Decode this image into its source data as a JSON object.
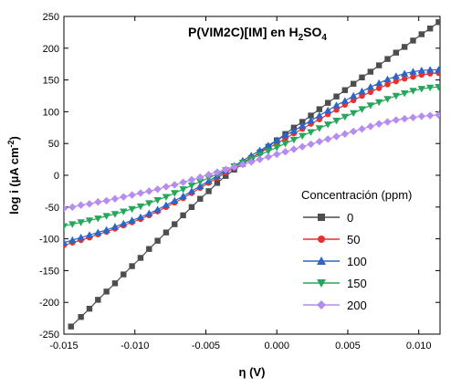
{
  "chart_data": {
    "type": "scatter",
    "title_parts": {
      "main": "P(VIM2C)[IM] en H",
      "sub1": "2",
      "mid": "SO",
      "sub2": "4"
    },
    "xlabel": "η (V)",
    "ylabel_parts": {
      "main": "log i (µA cm",
      "sup": "-2",
      "end": ")"
    },
    "xlim": [
      -0.015,
      0.0115
    ],
    "ylim": [
      -250,
      250
    ],
    "x_ticks": [
      -0.015,
      -0.01,
      -0.005,
      0.0,
      0.005,
      0.01
    ],
    "x_tick_labels": [
      "-0.015",
      "-0.010",
      "-0.005",
      "0.000",
      "0.005",
      "0.010"
    ],
    "y_ticks": [
      -250,
      -200,
      -150,
      -100,
      -50,
      0,
      50,
      100,
      150,
      200,
      250
    ],
    "y_tick_labels": [
      "-250",
      "-200",
      "-150",
      "-100",
      "-50",
      "0",
      "50",
      "100",
      "150",
      "200",
      "250"
    ],
    "grid": false,
    "legend_position": "right",
    "legend_title": "Concentración (ppm)",
    "series": [
      {
        "name": "0",
        "color": "#4d4d4d",
        "marker": "square",
        "points": [
          [
            -0.0145,
            -238
          ],
          [
            -0.0138,
            -223
          ],
          [
            -0.0132,
            -210
          ],
          [
            -0.0126,
            -196
          ],
          [
            -0.012,
            -183
          ],
          [
            -0.0114,
            -170
          ],
          [
            -0.0108,
            -156
          ],
          [
            -0.0102,
            -143
          ],
          [
            -0.0096,
            -130
          ],
          [
            -0.009,
            -116
          ],
          [
            -0.0084,
            -103
          ],
          [
            -0.0078,
            -90
          ],
          [
            -0.0072,
            -77
          ],
          [
            -0.0066,
            -63
          ],
          [
            -0.006,
            -50
          ],
          [
            -0.0054,
            -37
          ],
          [
            -0.0048,
            -25
          ],
          [
            -0.0042,
            -12
          ],
          [
            -0.0036,
            -1
          ],
          [
            -0.003,
            9
          ],
          [
            -0.0024,
            18
          ],
          [
            -0.0018,
            27
          ],
          [
            -0.0012,
            36
          ],
          [
            -0.0006,
            45
          ],
          [
            0.0,
            55
          ],
          [
            0.0006,
            65
          ],
          [
            0.0012,
            75
          ],
          [
            0.0018,
            84
          ],
          [
            0.0024,
            94
          ],
          [
            0.003,
            104
          ],
          [
            0.0036,
            114
          ],
          [
            0.0042,
            124
          ],
          [
            0.0048,
            134
          ],
          [
            0.0054,
            144
          ],
          [
            0.006,
            154
          ],
          [
            0.0066,
            163
          ],
          [
            0.0072,
            173
          ],
          [
            0.0078,
            183
          ],
          [
            0.0084,
            193
          ],
          [
            0.009,
            202
          ],
          [
            0.0096,
            212
          ],
          [
            0.0102,
            222
          ],
          [
            0.0108,
            231
          ],
          [
            0.0114,
            241
          ]
        ]
      },
      {
        "name": "50",
        "color": "#e8312f",
        "marker": "circle",
        "points": [
          [
            -0.015,
            -110
          ],
          [
            -0.0144,
            -106
          ],
          [
            -0.0138,
            -102
          ],
          [
            -0.0132,
            -98
          ],
          [
            -0.0126,
            -93
          ],
          [
            -0.012,
            -89
          ],
          [
            -0.0114,
            -84
          ],
          [
            -0.0108,
            -79
          ],
          [
            -0.0102,
            -74
          ],
          [
            -0.0096,
            -69
          ],
          [
            -0.009,
            -63
          ],
          [
            -0.0084,
            -57
          ],
          [
            -0.0078,
            -50
          ],
          [
            -0.0072,
            -43
          ],
          [
            -0.0066,
            -36
          ],
          [
            -0.006,
            -28
          ],
          [
            -0.0054,
            -20
          ],
          [
            -0.0048,
            -12
          ],
          [
            -0.0042,
            -4
          ],
          [
            -0.0036,
            4
          ],
          [
            -0.003,
            12
          ],
          [
            -0.0024,
            20
          ],
          [
            -0.0018,
            28
          ],
          [
            -0.0012,
            35
          ],
          [
            -0.0006,
            43
          ],
          [
            0.0,
            50
          ],
          [
            0.0006,
            58
          ],
          [
            0.0012,
            66
          ],
          [
            0.0018,
            73
          ],
          [
            0.0024,
            81
          ],
          [
            0.003,
            88
          ],
          [
            0.0036,
            96
          ],
          [
            0.0042,
            103
          ],
          [
            0.0048,
            111
          ],
          [
            0.0054,
            118
          ],
          [
            0.006,
            125
          ],
          [
            0.0066,
            131
          ],
          [
            0.0072,
            137
          ],
          [
            0.0078,
            143
          ],
          [
            0.0084,
            148
          ],
          [
            0.009,
            152
          ],
          [
            0.0096,
            155
          ],
          [
            0.0102,
            158
          ],
          [
            0.0108,
            160
          ],
          [
            0.0114,
            161
          ]
        ]
      },
      {
        "name": "100",
        "color": "#2b65c9",
        "marker": "triangle-up",
        "points": [
          [
            -0.015,
            -106
          ],
          [
            -0.0144,
            -102
          ],
          [
            -0.0138,
            -98
          ],
          [
            -0.0132,
            -94
          ],
          [
            -0.0126,
            -90
          ],
          [
            -0.012,
            -86
          ],
          [
            -0.0114,
            -81
          ],
          [
            -0.0108,
            -76
          ],
          [
            -0.0102,
            -71
          ],
          [
            -0.0096,
            -66
          ],
          [
            -0.009,
            -60
          ],
          [
            -0.0084,
            -54
          ],
          [
            -0.0078,
            -47
          ],
          [
            -0.0072,
            -40
          ],
          [
            -0.0066,
            -33
          ],
          [
            -0.006,
            -25
          ],
          [
            -0.0054,
            -17
          ],
          [
            -0.0048,
            -9
          ],
          [
            -0.0042,
            -1
          ],
          [
            -0.0036,
            7
          ],
          [
            -0.003,
            15
          ],
          [
            -0.0024,
            23
          ],
          [
            -0.0018,
            31
          ],
          [
            -0.0012,
            39
          ],
          [
            -0.0006,
            47
          ],
          [
            0.0,
            55
          ],
          [
            0.0006,
            63
          ],
          [
            0.0012,
            70
          ],
          [
            0.0018,
            78
          ],
          [
            0.0024,
            86
          ],
          [
            0.003,
            94
          ],
          [
            0.0036,
            102
          ],
          [
            0.0042,
            110
          ],
          [
            0.0048,
            117
          ],
          [
            0.0054,
            125
          ],
          [
            0.006,
            132
          ],
          [
            0.0066,
            139
          ],
          [
            0.0072,
            145
          ],
          [
            0.0078,
            151
          ],
          [
            0.0084,
            156
          ],
          [
            0.009,
            160
          ],
          [
            0.0096,
            163
          ],
          [
            0.0102,
            165
          ],
          [
            0.0108,
            166
          ],
          [
            0.0114,
            166
          ]
        ]
      },
      {
        "name": "150",
        "color": "#26a65a",
        "marker": "triangle-down",
        "points": [
          [
            -0.015,
            -80
          ],
          [
            -0.0144,
            -77
          ],
          [
            -0.0138,
            -74
          ],
          [
            -0.0132,
            -71
          ],
          [
            -0.0126,
            -68
          ],
          [
            -0.012,
            -64
          ],
          [
            -0.0114,
            -61
          ],
          [
            -0.0108,
            -57
          ],
          [
            -0.0102,
            -53
          ],
          [
            -0.0096,
            -49
          ],
          [
            -0.009,
            -44
          ],
          [
            -0.0084,
            -39
          ],
          [
            -0.0078,
            -34
          ],
          [
            -0.0072,
            -28
          ],
          [
            -0.0066,
            -22
          ],
          [
            -0.006,
            -16
          ],
          [
            -0.0054,
            -10
          ],
          [
            -0.0048,
            -4
          ],
          [
            -0.0042,
            2
          ],
          [
            -0.0036,
            8
          ],
          [
            -0.003,
            14
          ],
          [
            -0.0024,
            20
          ],
          [
            -0.0018,
            26
          ],
          [
            -0.0012,
            32
          ],
          [
            -0.0006,
            38
          ],
          [
            0.0,
            44
          ],
          [
            0.0006,
            50
          ],
          [
            0.0012,
            56
          ],
          [
            0.0018,
            62
          ],
          [
            0.0024,
            68
          ],
          [
            0.003,
            74
          ],
          [
            0.0036,
            80
          ],
          [
            0.0042,
            86
          ],
          [
            0.0048,
            92
          ],
          [
            0.0054,
            98
          ],
          [
            0.006,
            104
          ],
          [
            0.0066,
            110
          ],
          [
            0.0072,
            115
          ],
          [
            0.0078,
            120
          ],
          [
            0.0084,
            125
          ],
          [
            0.009,
            129
          ],
          [
            0.0096,
            133
          ],
          [
            0.0102,
            136
          ],
          [
            0.0108,
            138
          ],
          [
            0.0114,
            139
          ]
        ]
      },
      {
        "name": "200",
        "color": "#b68cf0",
        "marker": "diamond",
        "points": [
          [
            -0.015,
            -52
          ],
          [
            -0.0144,
            -50
          ],
          [
            -0.0138,
            -47
          ],
          [
            -0.0132,
            -45
          ],
          [
            -0.0126,
            -42
          ],
          [
            -0.012,
            -40
          ],
          [
            -0.0114,
            -37
          ],
          [
            -0.0108,
            -34
          ],
          [
            -0.0102,
            -31
          ],
          [
            -0.0096,
            -28
          ],
          [
            -0.009,
            -25
          ],
          [
            -0.0084,
            -22
          ],
          [
            -0.0078,
            -18
          ],
          [
            -0.0072,
            -15
          ],
          [
            -0.0066,
            -11
          ],
          [
            -0.006,
            -7
          ],
          [
            -0.0054,
            -3
          ],
          [
            -0.0048,
            1
          ],
          [
            -0.0042,
            5
          ],
          [
            -0.0036,
            9
          ],
          [
            -0.003,
            13
          ],
          [
            -0.0024,
            17
          ],
          [
            -0.0018,
            21
          ],
          [
            -0.0012,
            25
          ],
          [
            -0.0006,
            29
          ],
          [
            0.0,
            33
          ],
          [
            0.0006,
            37
          ],
          [
            0.0012,
            41
          ],
          [
            0.0018,
            45
          ],
          [
            0.0024,
            49
          ],
          [
            0.003,
            53
          ],
          [
            0.0036,
            57
          ],
          [
            0.0042,
            61
          ],
          [
            0.0048,
            65
          ],
          [
            0.0054,
            69
          ],
          [
            0.006,
            73
          ],
          [
            0.0066,
            77
          ],
          [
            0.0072,
            81
          ],
          [
            0.0078,
            84
          ],
          [
            0.0084,
            87
          ],
          [
            0.009,
            89
          ],
          [
            0.0096,
            91
          ],
          [
            0.0102,
            93
          ],
          [
            0.0108,
            94
          ],
          [
            0.0114,
            95
          ]
        ]
      }
    ]
  }
}
